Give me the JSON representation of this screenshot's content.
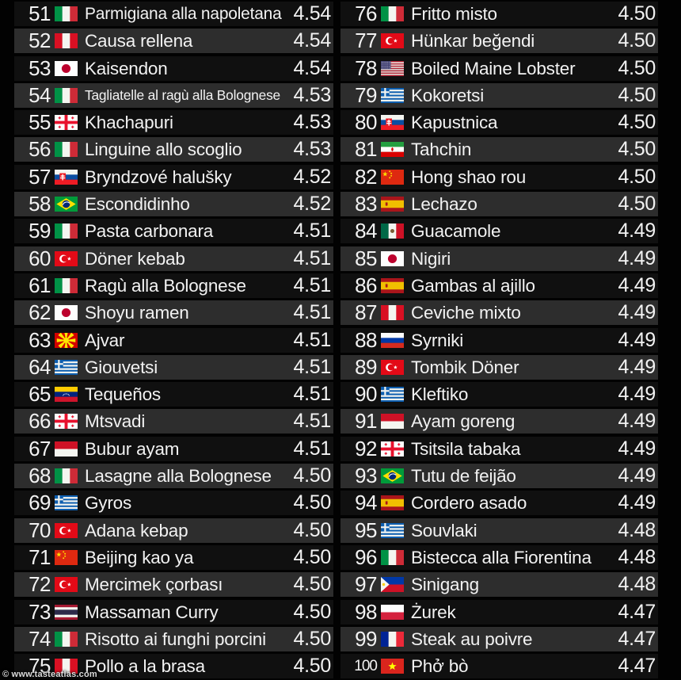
{
  "watermark": "© www.tasteatlas.com",
  "colors": {
    "background": "#020202",
    "row_dark": "#101010",
    "row_light": "#2d2d2d",
    "text": "#f2f2f2"
  },
  "chart_data": {
    "type": "table",
    "columns": [
      "rank",
      "flag",
      "dish",
      "rating"
    ],
    "rows": [
      {
        "rank": "51",
        "flag": "italy",
        "dish": "Parmigiana alla napoletana",
        "rating": "4.54"
      },
      {
        "rank": "52",
        "flag": "peru",
        "dish": "Causa rellena",
        "rating": "4.54"
      },
      {
        "rank": "53",
        "flag": "japan",
        "dish": "Kaisendon",
        "rating": "4.54"
      },
      {
        "rank": "54",
        "flag": "italy",
        "dish": "Tagliatelle al ragù alla Bolognese",
        "rating": "4.53"
      },
      {
        "rank": "55",
        "flag": "georgia",
        "dish": "Khachapuri",
        "rating": "4.53"
      },
      {
        "rank": "56",
        "flag": "italy",
        "dish": "Linguine allo scoglio",
        "rating": "4.53"
      },
      {
        "rank": "57",
        "flag": "slovakia",
        "dish": "Bryndzové halušky",
        "rating": "4.52"
      },
      {
        "rank": "58",
        "flag": "brazil",
        "dish": "Escondidinho",
        "rating": "4.52"
      },
      {
        "rank": "59",
        "flag": "italy",
        "dish": "Pasta carbonara",
        "rating": "4.51"
      },
      {
        "rank": "60",
        "flag": "turkey",
        "dish": "Döner kebab",
        "rating": "4.51"
      },
      {
        "rank": "61",
        "flag": "italy",
        "dish": "Ragù alla Bolognese",
        "rating": "4.51"
      },
      {
        "rank": "62",
        "flag": "japan",
        "dish": "Shoyu ramen",
        "rating": "4.51"
      },
      {
        "rank": "63",
        "flag": "macedonia",
        "dish": "Ajvar",
        "rating": "4.51"
      },
      {
        "rank": "64",
        "flag": "greece",
        "dish": "Giouvetsi",
        "rating": "4.51"
      },
      {
        "rank": "65",
        "flag": "venezuela",
        "dish": "Tequeños",
        "rating": "4.51"
      },
      {
        "rank": "66",
        "flag": "georgia",
        "dish": "Mtsvadi",
        "rating": "4.51"
      },
      {
        "rank": "67",
        "flag": "indonesia",
        "dish": "Bubur ayam",
        "rating": "4.51"
      },
      {
        "rank": "68",
        "flag": "italy",
        "dish": "Lasagne alla Bolognese",
        "rating": "4.50"
      },
      {
        "rank": "69",
        "flag": "greece",
        "dish": "Gyros",
        "rating": "4.50"
      },
      {
        "rank": "70",
        "flag": "turkey",
        "dish": "Adana kebap",
        "rating": "4.50"
      },
      {
        "rank": "71",
        "flag": "china",
        "dish": "Beijing kao ya",
        "rating": "4.50"
      },
      {
        "rank": "72",
        "flag": "turkey",
        "dish": "Mercimek çorbası",
        "rating": "4.50"
      },
      {
        "rank": "73",
        "flag": "thailand",
        "dish": "Massaman Curry",
        "rating": "4.50"
      },
      {
        "rank": "74",
        "flag": "italy",
        "dish": "Risotto ai funghi porcini",
        "rating": "4.50"
      },
      {
        "rank": "75",
        "flag": "peru",
        "dish": "Pollo a la brasa",
        "rating": "4.50"
      },
      {
        "rank": "76",
        "flag": "italy",
        "dish": "Fritto misto",
        "rating": "4.50"
      },
      {
        "rank": "77",
        "flag": "turkey",
        "dish": "Hünkar beğendi",
        "rating": "4.50"
      },
      {
        "rank": "78",
        "flag": "usa",
        "dish": "Boiled Maine Lobster",
        "rating": "4.50"
      },
      {
        "rank": "79",
        "flag": "greece",
        "dish": "Kokoretsi",
        "rating": "4.50"
      },
      {
        "rank": "80",
        "flag": "slovakia",
        "dish": "Kapustnica",
        "rating": "4.50"
      },
      {
        "rank": "81",
        "flag": "iran",
        "dish": "Tahchin",
        "rating": "4.50"
      },
      {
        "rank": "82",
        "flag": "china",
        "dish": "Hong shao rou",
        "rating": "4.50"
      },
      {
        "rank": "83",
        "flag": "spain",
        "dish": "Lechazo",
        "rating": "4.50"
      },
      {
        "rank": "84",
        "flag": "mexico",
        "dish": "Guacamole",
        "rating": "4.49"
      },
      {
        "rank": "85",
        "flag": "japan",
        "dish": "Nigiri",
        "rating": "4.49"
      },
      {
        "rank": "86",
        "flag": "spain",
        "dish": "Gambas al ajillo",
        "rating": "4.49"
      },
      {
        "rank": "87",
        "flag": "peru",
        "dish": "Ceviche mixto",
        "rating": "4.49"
      },
      {
        "rank": "88",
        "flag": "russia",
        "dish": "Syrniki",
        "rating": "4.49"
      },
      {
        "rank": "89",
        "flag": "turkey",
        "dish": "Tombik Döner",
        "rating": "4.49"
      },
      {
        "rank": "90",
        "flag": "greece",
        "dish": "Kleftiko",
        "rating": "4.49"
      },
      {
        "rank": "91",
        "flag": "indonesia",
        "dish": "Ayam goreng",
        "rating": "4.49"
      },
      {
        "rank": "92",
        "flag": "georgia",
        "dish": "Tsitsila tabaka",
        "rating": "4.49"
      },
      {
        "rank": "93",
        "flag": "brazil",
        "dish": "Tutu de feijão",
        "rating": "4.49"
      },
      {
        "rank": "94",
        "flag": "spain",
        "dish": "Cordero asado",
        "rating": "4.49"
      },
      {
        "rank": "95",
        "flag": "greece",
        "dish": "Souvlaki",
        "rating": "4.48"
      },
      {
        "rank": "96",
        "flag": "italy",
        "dish": "Bistecca alla Fiorentina",
        "rating": "4.48"
      },
      {
        "rank": "97",
        "flag": "philippines",
        "dish": "Sinigang",
        "rating": "4.48"
      },
      {
        "rank": "98",
        "flag": "poland",
        "dish": "Żurek",
        "rating": "4.47"
      },
      {
        "rank": "99",
        "flag": "france",
        "dish": "Steak au poivre",
        "rating": "4.47"
      },
      {
        "rank": "100",
        "flag": "vietnam",
        "dish": "Phở bò",
        "rating": "4.47"
      }
    ]
  }
}
